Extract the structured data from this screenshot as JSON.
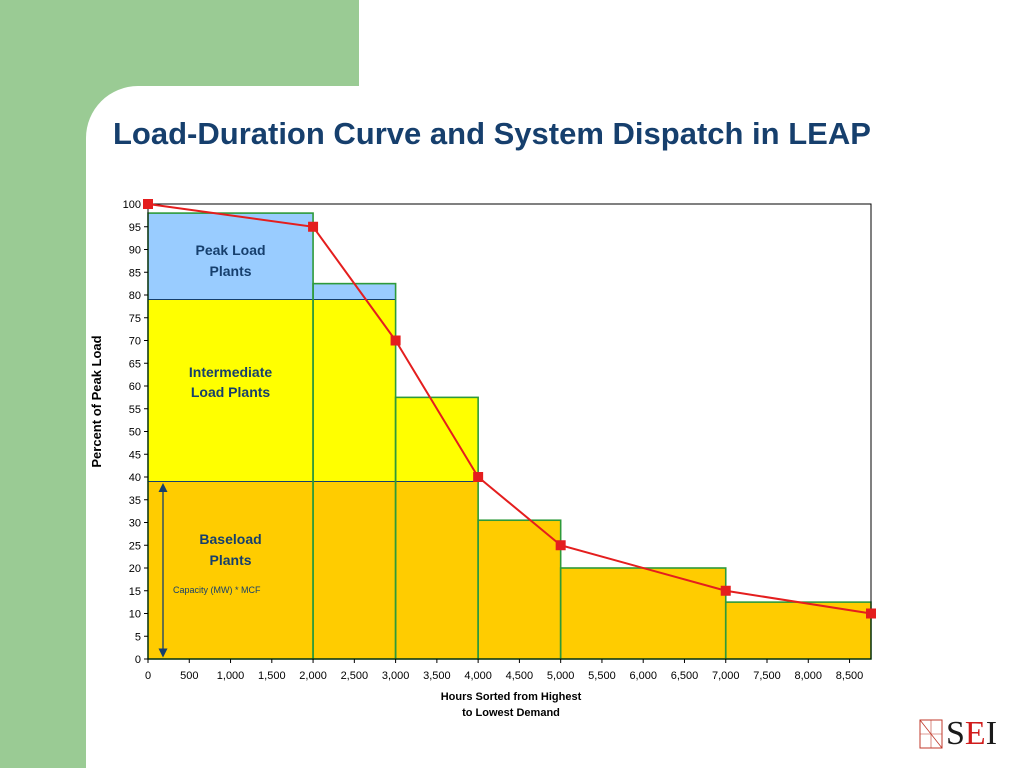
{
  "slide": {
    "title": "Load-Duration Curve and System Dispatch in LEAP"
  },
  "colors": {
    "bg_green": "#9acb94",
    "title": "#163f6d",
    "peak": "#99ccff",
    "intermediate": "#ffff00",
    "baseload": "#ffcc00",
    "step_border": "#2e9a3a",
    "curve": "#e41e1e"
  },
  "chart_data": {
    "type": "area",
    "xlabel": [
      "Hours Sorted from Highest",
      "to Lowest Demand"
    ],
    "ylabel": "Percent of Peak Load",
    "xlim": [
      0,
      8760
    ],
    "ylim": [
      0,
      100
    ],
    "x_ticks": [
      "0",
      "500",
      "1,000",
      "1,500",
      "2,000",
      "2,500",
      "3,000",
      "3,500",
      "4,000",
      "4,500",
      "5,000",
      "5,500",
      "6,000",
      "6,500",
      "7,000",
      "7,500",
      "8,000",
      "8,500"
    ],
    "x_tick_values": [
      0,
      500,
      1000,
      1500,
      2000,
      2500,
      3000,
      3500,
      4000,
      4500,
      5000,
      5500,
      6000,
      6500,
      7000,
      7500,
      8000,
      8500
    ],
    "y_ticks": [
      "0",
      "5",
      "10",
      "15",
      "20",
      "25",
      "30",
      "35",
      "40",
      "45",
      "50",
      "55",
      "60",
      "65",
      "70",
      "75",
      "80",
      "85",
      "90",
      "95",
      "100"
    ],
    "y_tick_values": [
      0,
      5,
      10,
      15,
      20,
      25,
      30,
      35,
      40,
      45,
      50,
      55,
      60,
      65,
      70,
      75,
      80,
      85,
      90,
      95,
      100
    ],
    "steps": [
      {
        "x0": 0,
        "x1": 2000,
        "y": 98
      },
      {
        "x0": 2000,
        "x1": 3000,
        "y": 82.5
      },
      {
        "x0": 3000,
        "x1": 4000,
        "y": 57.5
      },
      {
        "x0": 4000,
        "x1": 5000,
        "y": 30.5
      },
      {
        "x0": 5000,
        "x1": 7000,
        "y": 20
      },
      {
        "x0": 7000,
        "x1": 8760,
        "y": 12.5
      }
    ],
    "dispatch_bands": {
      "baseload_max": 39,
      "intermediate_max": 79
    },
    "series": [
      {
        "x": [
          0,
          2000,
          3000,
          4000,
          5000,
          7000,
          8760
        ],
        "y": [
          100,
          95,
          70,
          40,
          25,
          15,
          10
        ]
      }
    ],
    "region_labels": {
      "peak": [
        "Peak Load",
        "Plants"
      ],
      "intermediate": [
        "Intermediate",
        "Load Plants"
      ],
      "baseload": [
        "Baseload",
        "Plants"
      ]
    },
    "annotation": "Capacity (MW) * MCF",
    "grid": false
  },
  "logo": {
    "letters": [
      "S",
      "E",
      "I"
    ],
    "letter_colors": [
      "#1a1a1a",
      "#d01c1c",
      "#1a1a1a"
    ]
  }
}
